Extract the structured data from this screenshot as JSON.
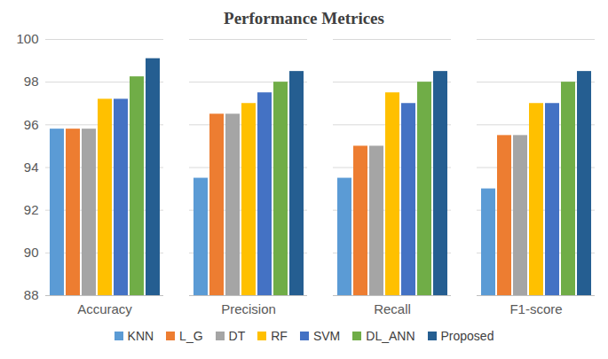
{
  "chart_data": {
    "type": "bar",
    "title": "Performance Metrices",
    "categories": [
      "Accuracy",
      "Precision",
      "Recall",
      "F1-score"
    ],
    "series": [
      {
        "name": "KNN",
        "color": "#5b9bd5",
        "values": [
          95.8,
          93.5,
          93.5,
          93
        ]
      },
      {
        "name": "L_G",
        "color": "#ed7d31",
        "values": [
          95.8,
          96.5,
          95,
          95.5
        ]
      },
      {
        "name": "DT",
        "color": "#a5a5a5",
        "values": [
          95.8,
          96.5,
          95,
          95.5
        ]
      },
      {
        "name": "RF",
        "color": "#ffc000",
        "values": [
          97.2,
          97,
          97.5,
          97
        ]
      },
      {
        "name": "SVM",
        "color": "#4472c4",
        "values": [
          97.2,
          97.5,
          97,
          97
        ]
      },
      {
        "name": "DL_ANN",
        "color": "#70ad47",
        "values": [
          98.25,
          98,
          98,
          98
        ]
      },
      {
        "name": "Proposed",
        "color": "#255e91",
        "values": [
          99.1,
          98.5,
          98.5,
          98.5
        ]
      }
    ],
    "ylim": [
      88,
      100
    ],
    "yticks": [
      88,
      90,
      92,
      94,
      96,
      98,
      100
    ],
    "grid": true,
    "legend": "bottom"
  }
}
